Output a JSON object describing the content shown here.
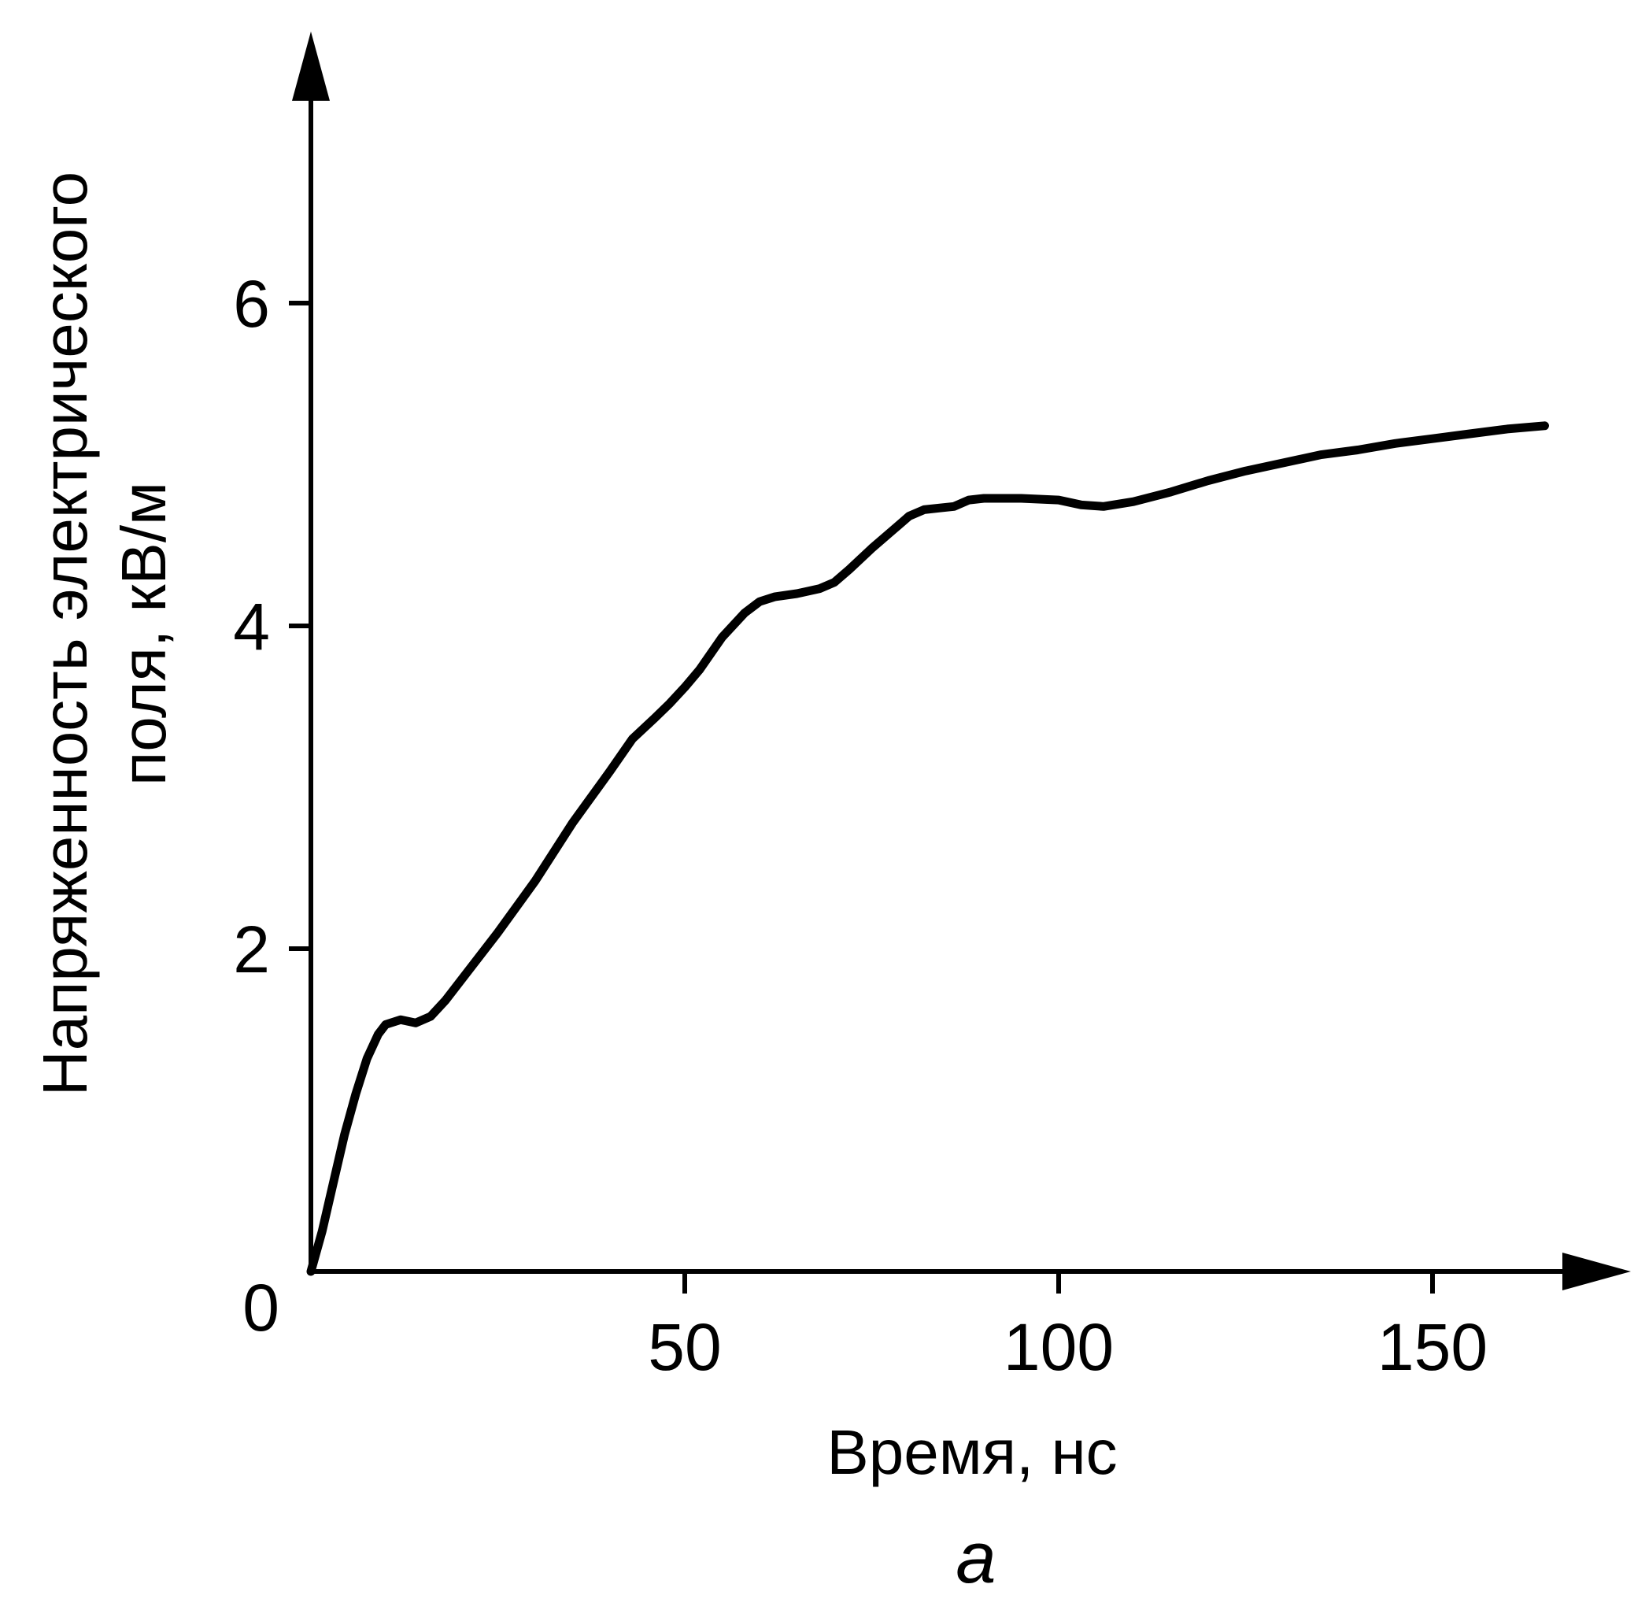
{
  "chart_data": {
    "type": "line",
    "title": "",
    "xlabel": "Время, нс",
    "ylabel_lines": [
      "Напряженность электрического",
      "поля, кВ/м"
    ],
    "panel_label": "а",
    "xlim": [
      0,
      170
    ],
    "ylim": [
      0,
      7.4
    ],
    "x_ticks": [
      50,
      100,
      150
    ],
    "y_ticks": [
      2,
      4,
      6
    ],
    "origin_label": "0",
    "grid": false,
    "legend": "none",
    "series": [
      {
        "color": "#000000",
        "x": [
          0,
          1.5,
          3,
          4.5,
          6,
          7.5,
          9,
          10,
          12,
          14,
          16,
          18,
          20,
          25,
          30,
          35,
          40,
          43,
          46,
          48,
          50,
          52,
          55,
          58,
          60,
          62,
          65,
          68,
          70,
          72,
          75,
          78,
          80,
          82,
          84,
          86,
          88,
          90,
          95,
          100,
          103,
          106,
          110,
          115,
          120,
          125,
          130,
          135,
          140,
          145,
          150,
          155,
          160,
          165
        ],
        "y": [
          0,
          0.25,
          0.55,
          0.85,
          1.1,
          1.32,
          1.47,
          1.53,
          1.56,
          1.54,
          1.58,
          1.68,
          1.8,
          2.1,
          2.42,
          2.78,
          3.1,
          3.3,
          3.43,
          3.52,
          3.62,
          3.73,
          3.93,
          4.08,
          4.15,
          4.18,
          4.2,
          4.23,
          4.27,
          4.35,
          4.48,
          4.6,
          4.68,
          4.72,
          4.73,
          4.74,
          4.78,
          4.79,
          4.79,
          4.78,
          4.75,
          4.74,
          4.77,
          4.83,
          4.9,
          4.96,
          5.01,
          5.06,
          5.09,
          5.13,
          5.16,
          5.19,
          5.22,
          5.24
        ]
      }
    ]
  }
}
